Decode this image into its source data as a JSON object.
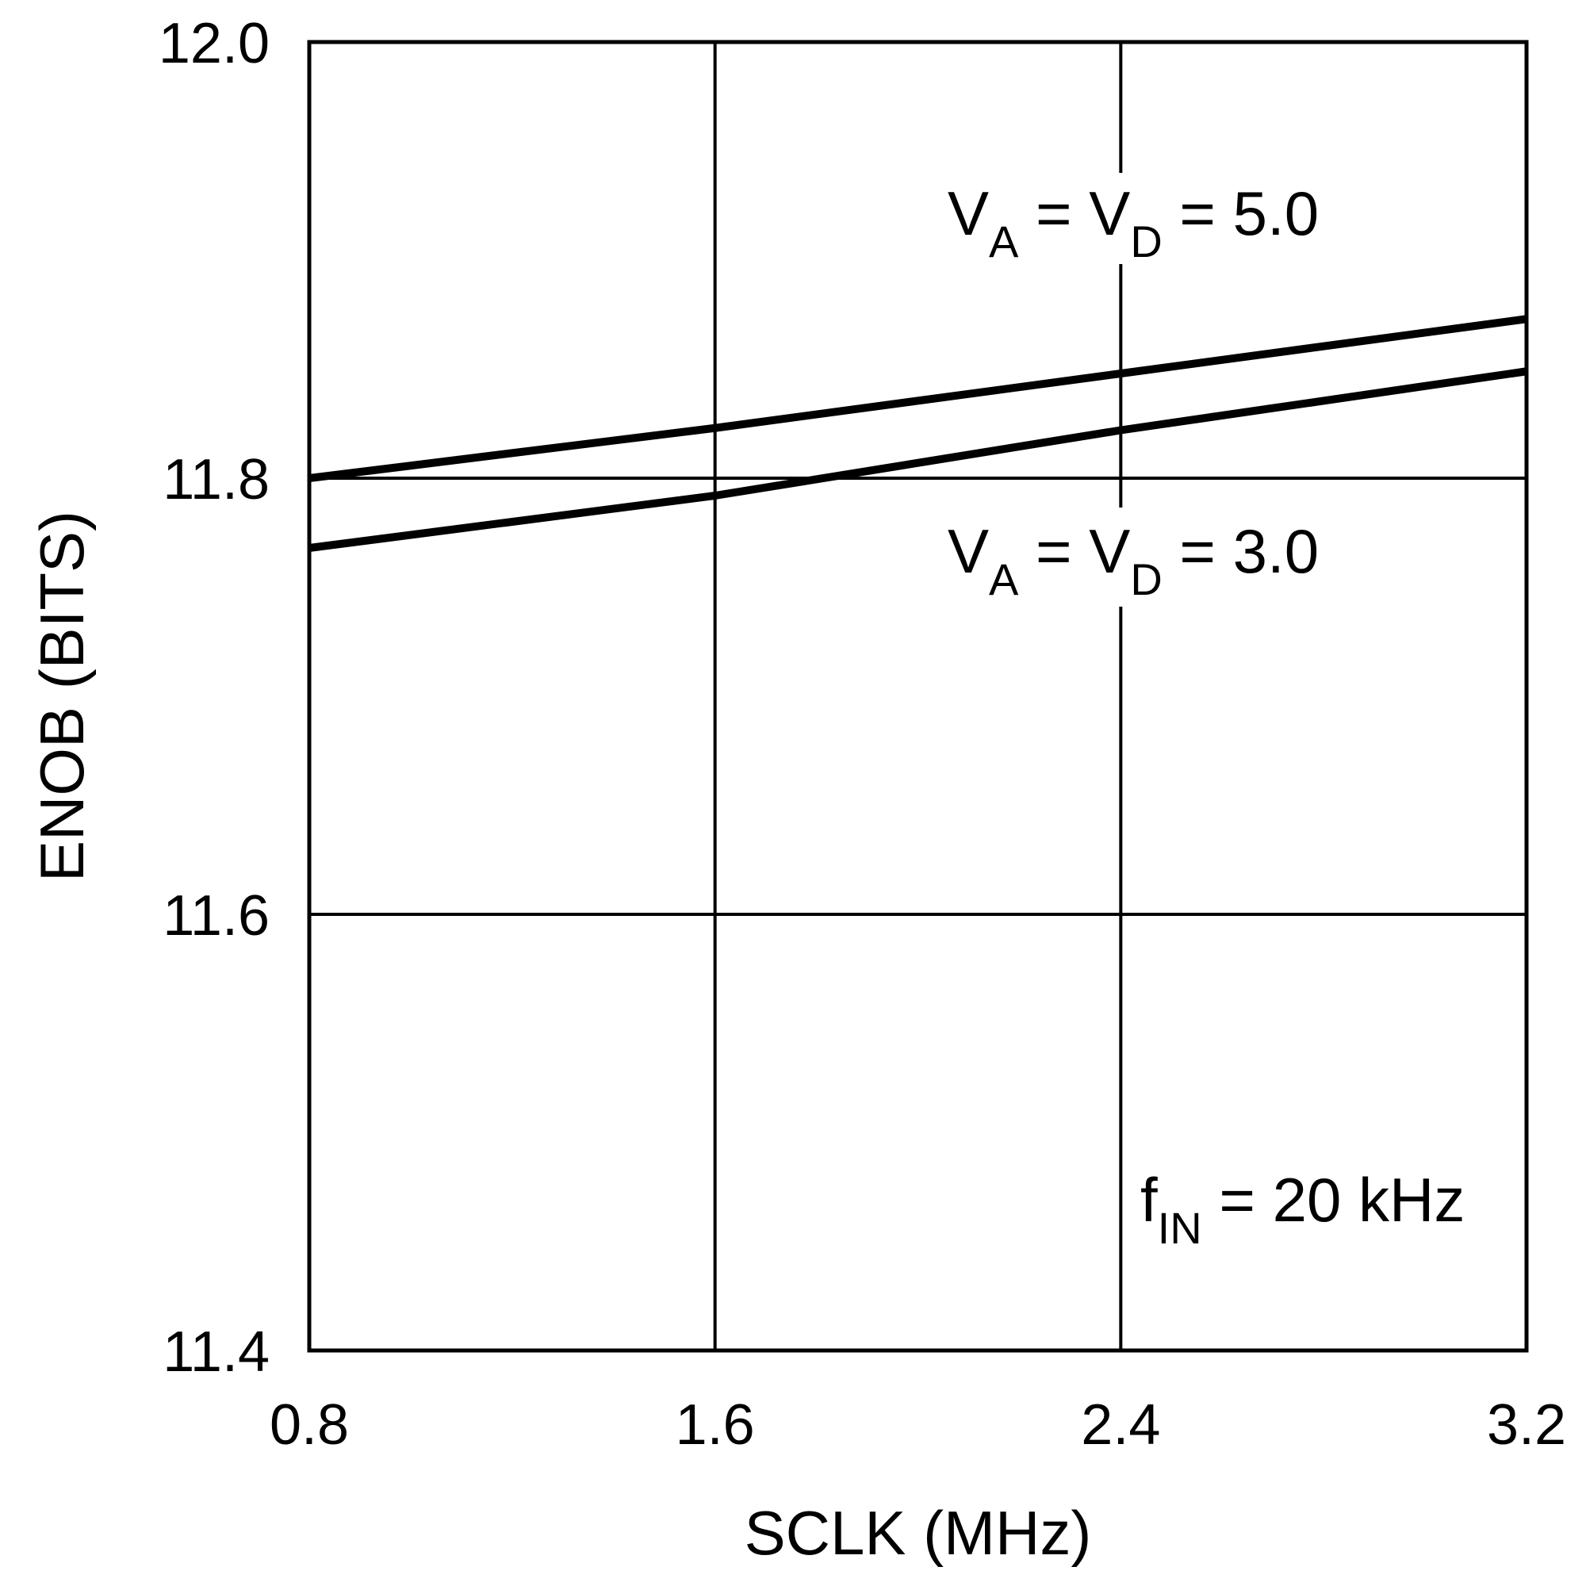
{
  "chart_data": {
    "type": "line",
    "xlabel": "SCLK (MHz)",
    "ylabel": "ENOB (BITS)",
    "xlim": [
      0.8,
      3.2
    ],
    "ylim": [
      11.4,
      12.0
    ],
    "xticks": [
      "0.8",
      "1.6",
      "2.4",
      "3.2"
    ],
    "yticks": [
      "11.4",
      "11.6",
      "11.8",
      "12.0"
    ],
    "grid": true,
    "line_color": "#000000",
    "series": [
      {
        "name": "VA = VD = 5.0",
        "x": [
          0.8,
          1.6,
          2.4,
          3.2
        ],
        "y": [
          11.8,
          11.823,
          11.848,
          11.873
        ]
      },
      {
        "name": "VA = VD = 3.0",
        "x": [
          0.8,
          1.6,
          2.4,
          3.2
        ],
        "y": [
          11.768,
          11.792,
          11.822,
          11.849
        ]
      }
    ],
    "annotations": [
      {
        "main": "V",
        "sub1": "A",
        "mid": " = V",
        "sub2": "D",
        "tail": " = 5.0"
      },
      {
        "main": "V",
        "sub1": "A",
        "mid": " = V",
        "sub2": "D",
        "tail": " = 3.0"
      },
      {
        "main": "f",
        "sub1": "IN",
        "tail": " = 20 kHz"
      }
    ]
  }
}
